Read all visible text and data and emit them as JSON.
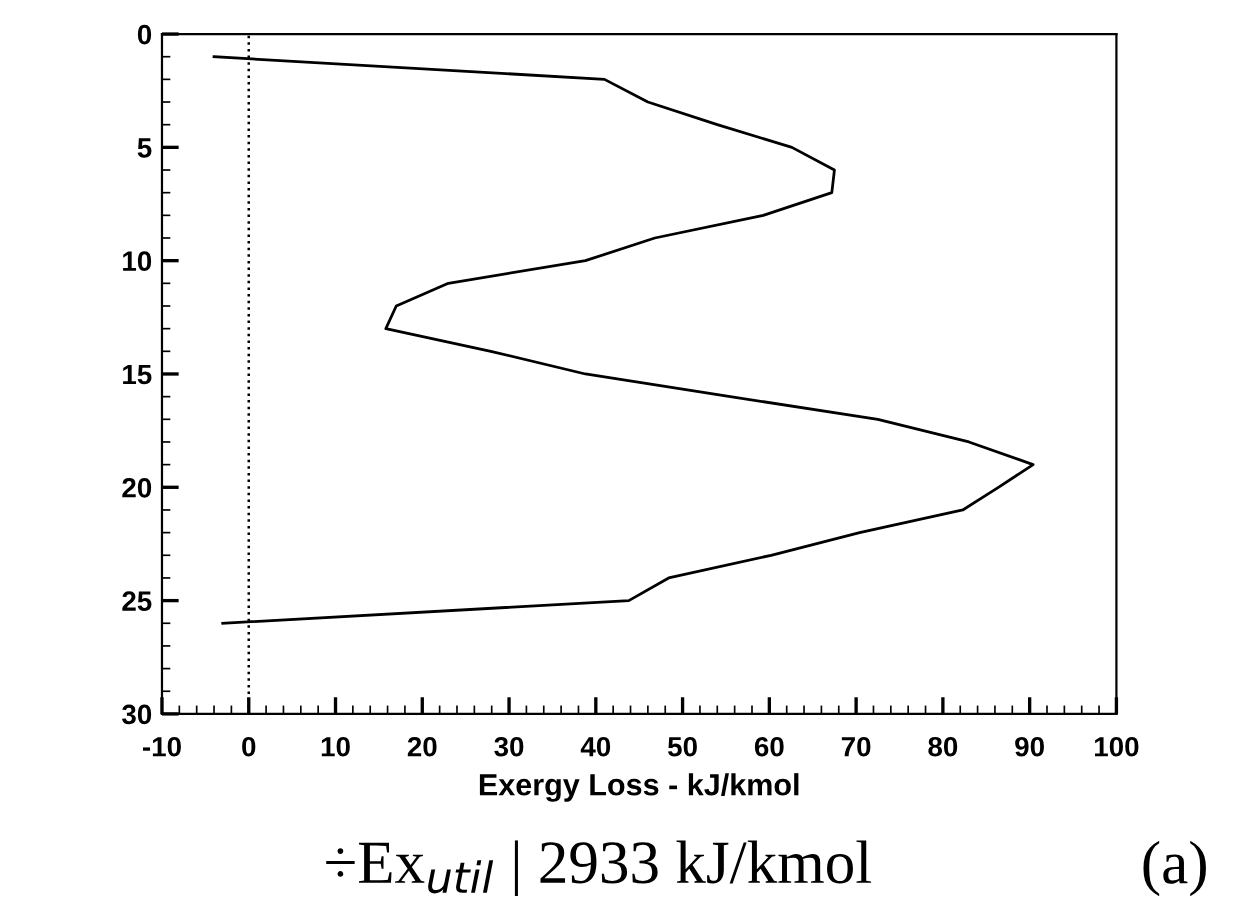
{
  "chart_data": {
    "type": "line",
    "xlabel": "Exergy Loss - kJ/kmol",
    "x": [
      -4,
      41,
      46,
      54,
      62.6,
      67.5,
      67.2,
      59.3,
      46.8,
      38.8,
      23,
      17,
      15.8,
      27.9,
      38.8,
      55.5,
      72.5,
      83,
      90.4,
      86.4,
      82.3,
      70.4,
      60.2,
      48.4,
      43.8,
      -3
    ],
    "series": [
      {
        "color": "#000000",
        "values": [
          1,
          2,
          3,
          4,
          5,
          6,
          7,
          8,
          9,
          10,
          11,
          12,
          13,
          14,
          15,
          16,
          17,
          18,
          19,
          20,
          21,
          22,
          23,
          24,
          25,
          26
        ]
      }
    ],
    "xlim": [
      -10,
      100
    ],
    "xticks": [
      -10,
      0,
      10,
      20,
      30,
      40,
      50,
      60,
      70,
      80,
      90,
      100
    ],
    "ylim": [
      30,
      0
    ],
    "yticks": [
      0,
      5,
      10,
      15,
      20,
      25,
      30
    ],
    "ref_lines": [
      {
        "axis": "x",
        "value": 0,
        "color": "#000000",
        "line_style": "dotted"
      }
    ],
    "grid": false,
    "legend": false,
    "marker": "none",
    "line_style": "solid",
    "annotations": [
      "÷Ex$_{util}$ | 2933 kJ/kmol",
      "(a)"
    ]
  }
}
